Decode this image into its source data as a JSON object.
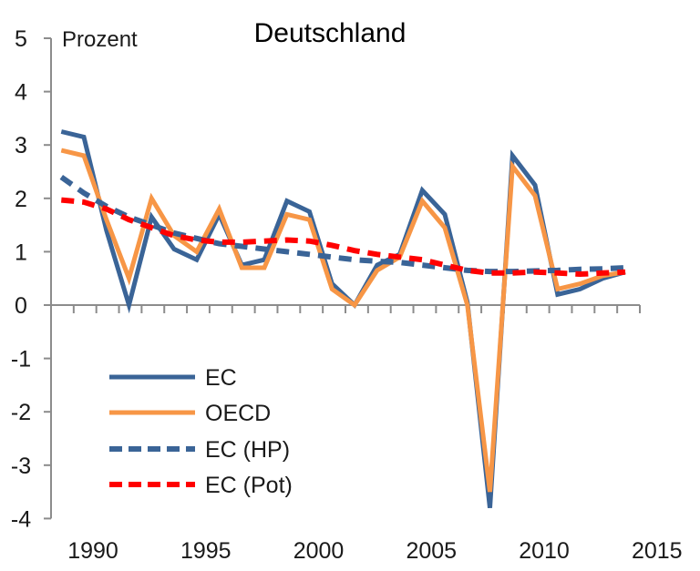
{
  "chart_data": {
    "type": "line",
    "title": "Deutschland",
    "ylabel": "Prozent",
    "xlabel": "",
    "ylim": [
      -4,
      5
    ],
    "yticks": [
      5,
      4,
      3,
      2,
      1,
      0,
      -1,
      -2,
      -3,
      -4
    ],
    "ytick_labels": [
      "5",
      "4",
      "3",
      "2",
      "1",
      "0",
      "-1",
      "-2",
      "-3",
      "-4"
    ],
    "xlim": [
      1989,
      2014
    ],
    "xtick_labels": [
      "1990",
      "1995",
      "2000",
      "2005",
      "2010",
      "2015"
    ],
    "xtick_values": [
      1990,
      1995,
      2000,
      2005,
      2010,
      2015
    ],
    "grid": false,
    "legend_position": "bottom-left",
    "x": [
      1989,
      1990,
      1991,
      1992,
      1993,
      1994,
      1995,
      1996,
      1997,
      1998,
      1999,
      2000,
      2001,
      2002,
      2003,
      2004,
      2005,
      2006,
      2007,
      2008,
      2009,
      2010,
      2011,
      2012,
      2013,
      2014
    ],
    "series": [
      {
        "name": "EC",
        "color": "#3a6497",
        "style": "solid",
        "values": [
          3.25,
          3.15,
          1.4,
          0.0,
          1.65,
          1.05,
          0.85,
          1.7,
          0.75,
          0.85,
          1.95,
          1.75,
          0.4,
          0.0,
          0.75,
          0.95,
          2.15,
          1.7,
          0.05,
          -3.8,
          2.8,
          2.25,
          0.2,
          0.3,
          0.5,
          0.62
        ]
      },
      {
        "name": "OECD",
        "color": "#f79646",
        "style": "solid",
        "values": [
          2.9,
          2.8,
          1.6,
          0.5,
          2.0,
          1.3,
          1.0,
          1.8,
          0.7,
          0.7,
          1.7,
          1.6,
          0.3,
          0.0,
          0.65,
          0.9,
          1.95,
          1.45,
          0.0,
          -3.5,
          2.6,
          2.05,
          0.3,
          0.4,
          0.55,
          0.62
        ]
      },
      {
        "name": "EC (HP)",
        "color": "#3a6497",
        "style": "dashed",
        "values": [
          2.4,
          2.1,
          1.85,
          1.65,
          1.5,
          1.35,
          1.25,
          1.15,
          1.1,
          1.05,
          1.0,
          0.95,
          0.9,
          0.85,
          0.82,
          0.8,
          0.75,
          0.7,
          0.65,
          0.63,
          0.63,
          0.64,
          0.65,
          0.67,
          0.68,
          0.7
        ]
      },
      {
        "name": "EC (Pot)",
        "color": "#ff0000",
        "style": "dashed",
        "values": [
          1.97,
          1.93,
          1.8,
          1.6,
          1.45,
          1.3,
          1.22,
          1.18,
          1.18,
          1.2,
          1.22,
          1.2,
          1.12,
          1.02,
          0.95,
          0.9,
          0.85,
          0.75,
          0.65,
          0.6,
          0.6,
          0.62,
          0.6,
          0.58,
          0.6,
          0.62
        ]
      }
    ]
  }
}
